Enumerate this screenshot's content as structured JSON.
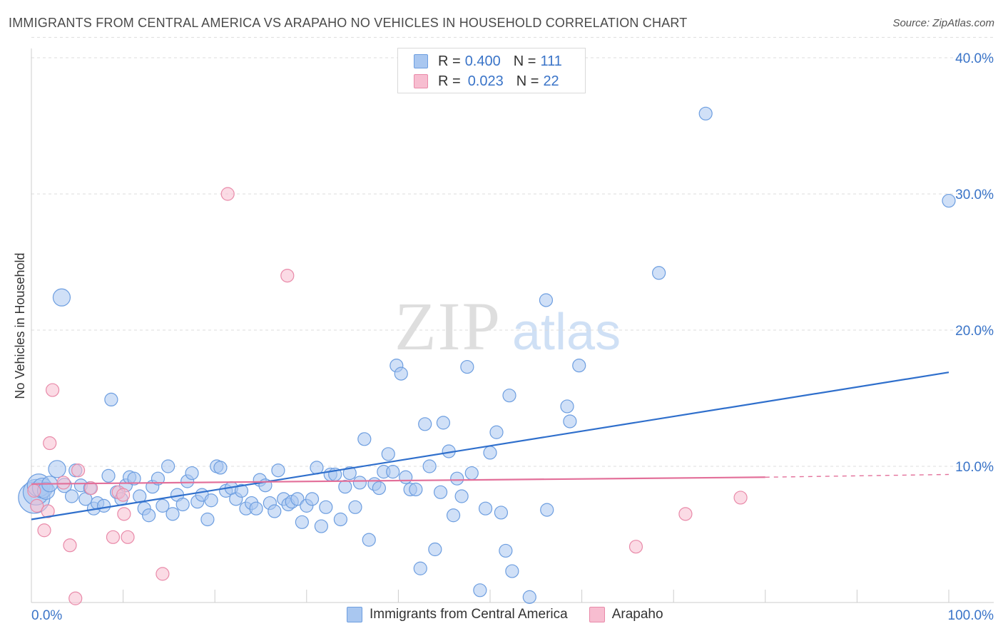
{
  "header": {
    "title": "IMMIGRANTS FROM CENTRAL AMERICA VS ARAPAHO NO VEHICLES IN HOUSEHOLD CORRELATION CHART",
    "source": "Source: ZipAtlas.com"
  },
  "watermark": {
    "zip": "ZIP",
    "atlas": "atlas"
  },
  "legend": {
    "rows": [
      {
        "r_label": "R = ",
        "r_value": "0.400",
        "n_label": "N = ",
        "n_value": "111"
      },
      {
        "r_label": "R = ",
        "r_value": "0.023",
        "n_label": "N = ",
        "n_value": "22"
      }
    ]
  },
  "colors": {
    "blue_fill": "#a9c7f0",
    "blue_stroke": "#6d9ee0",
    "blue_line": "#2f6fcc",
    "pink_fill": "#f7bdd0",
    "pink_stroke": "#e98aa9",
    "pink_line": "#e3709a",
    "grid": "#dddddd",
    "tick_label": "#3a74c8"
  },
  "chart_data": {
    "type": "scatter",
    "title": "IMMIGRANTS FROM CENTRAL AMERICA VS ARAPAHO NO VEHICLES IN HOUSEHOLD CORRELATION CHART",
    "xlabel": "",
    "ylabel": "No Vehicles in Household",
    "xlim": [
      0,
      100
    ],
    "ylim": [
      0,
      42
    ],
    "x_tick_labels": [
      "0.0%",
      "100.0%"
    ],
    "y_ticks": [
      10,
      20,
      30,
      40
    ],
    "y_tick_labels": [
      "10.0%",
      "20.0%",
      "30.0%",
      "40.0%"
    ],
    "grid": true,
    "legend_position": "top-center",
    "series": [
      {
        "name": "Immigrants from Central America",
        "color": "#a9c7f0",
        "regression": {
          "x": [
            0,
            100
          ],
          "y": [
            6.1,
            16.9
          ],
          "r": 0.4,
          "n": 111
        },
        "points": [
          {
            "x": 0.3,
            "y": 7.7,
            "s": 22
          },
          {
            "x": 0.5,
            "y": 8.1,
            "s": 18
          },
          {
            "x": 0.8,
            "y": 8.6,
            "s": 16
          },
          {
            "x": 1.2,
            "y": 8.4,
            "s": 14
          },
          {
            "x": 1.6,
            "y": 8.2,
            "s": 12
          },
          {
            "x": 2.0,
            "y": 8.7,
            "s": 11
          },
          {
            "x": 2.8,
            "y": 9.8,
            "s": 12
          },
          {
            "x": 3.3,
            "y": 22.4,
            "s": 12
          },
          {
            "x": 3.6,
            "y": 8.6,
            "s": 10
          },
          {
            "x": 4.4,
            "y": 7.8,
            "s": 9
          },
          {
            "x": 4.8,
            "y": 9.7,
            "s": 9
          },
          {
            "x": 5.4,
            "y": 8.6,
            "s": 9
          },
          {
            "x": 5.9,
            "y": 7.6,
            "s": 9
          },
          {
            "x": 6.4,
            "y": 8.4,
            "s": 9
          },
          {
            "x": 6.8,
            "y": 6.9,
            "s": 9
          },
          {
            "x": 7.2,
            "y": 7.3,
            "s": 9
          },
          {
            "x": 7.9,
            "y": 7.1,
            "s": 9
          },
          {
            "x": 8.4,
            "y": 9.3,
            "s": 9
          },
          {
            "x": 8.7,
            "y": 14.9,
            "s": 9
          },
          {
            "x": 9.3,
            "y": 8.1,
            "s": 9
          },
          {
            "x": 9.8,
            "y": 7.6,
            "s": 9
          },
          {
            "x": 10.3,
            "y": 8.6,
            "s": 9
          },
          {
            "x": 10.7,
            "y": 9.2,
            "s": 9
          },
          {
            "x": 11.2,
            "y": 9.1,
            "s": 9
          },
          {
            "x": 11.8,
            "y": 7.8,
            "s": 9
          },
          {
            "x": 12.3,
            "y": 6.9,
            "s": 9
          },
          {
            "x": 12.8,
            "y": 6.4,
            "s": 9
          },
          {
            "x": 13.2,
            "y": 8.5,
            "s": 9
          },
          {
            "x": 13.8,
            "y": 9.1,
            "s": 9
          },
          {
            "x": 14.3,
            "y": 7.1,
            "s": 9
          },
          {
            "x": 14.9,
            "y": 10.0,
            "s": 9
          },
          {
            "x": 15.4,
            "y": 6.5,
            "s": 9
          },
          {
            "x": 15.9,
            "y": 7.9,
            "s": 9
          },
          {
            "x": 16.5,
            "y": 7.2,
            "s": 9
          },
          {
            "x": 17.0,
            "y": 8.9,
            "s": 9
          },
          {
            "x": 17.5,
            "y": 9.5,
            "s": 9
          },
          {
            "x": 18.1,
            "y": 7.4,
            "s": 9
          },
          {
            "x": 18.6,
            "y": 7.9,
            "s": 9
          },
          {
            "x": 19.2,
            "y": 6.1,
            "s": 9
          },
          {
            "x": 19.6,
            "y": 7.5,
            "s": 9
          },
          {
            "x": 20.2,
            "y": 10.0,
            "s": 9
          },
          {
            "x": 20.6,
            "y": 9.9,
            "s": 9
          },
          {
            "x": 21.2,
            "y": 8.2,
            "s": 9
          },
          {
            "x": 21.8,
            "y": 8.4,
            "s": 9
          },
          {
            "x": 22.3,
            "y": 7.6,
            "s": 9
          },
          {
            "x": 22.9,
            "y": 8.2,
            "s": 9
          },
          {
            "x": 23.4,
            "y": 6.9,
            "s": 9
          },
          {
            "x": 24.0,
            "y": 7.3,
            "s": 9
          },
          {
            "x": 24.5,
            "y": 6.9,
            "s": 9
          },
          {
            "x": 24.9,
            "y": 9.0,
            "s": 9
          },
          {
            "x": 25.5,
            "y": 8.6,
            "s": 9
          },
          {
            "x": 26.0,
            "y": 7.3,
            "s": 9
          },
          {
            "x": 26.5,
            "y": 6.7,
            "s": 9
          },
          {
            "x": 26.9,
            "y": 9.7,
            "s": 9
          },
          {
            "x": 27.5,
            "y": 7.6,
            "s": 9
          },
          {
            "x": 28.0,
            "y": 7.2,
            "s": 9
          },
          {
            "x": 28.4,
            "y": 7.4,
            "s": 9
          },
          {
            "x": 29.0,
            "y": 7.6,
            "s": 9
          },
          {
            "x": 29.5,
            "y": 5.9,
            "s": 9
          },
          {
            "x": 30.0,
            "y": 7.1,
            "s": 9
          },
          {
            "x": 30.6,
            "y": 7.6,
            "s": 9
          },
          {
            "x": 31.1,
            "y": 9.9,
            "s": 9
          },
          {
            "x": 31.6,
            "y": 5.6,
            "s": 9
          },
          {
            "x": 32.1,
            "y": 7.0,
            "s": 9
          },
          {
            "x": 32.6,
            "y": 9.4,
            "s": 9
          },
          {
            "x": 33.1,
            "y": 9.4,
            "s": 9
          },
          {
            "x": 33.7,
            "y": 6.1,
            "s": 9
          },
          {
            "x": 34.2,
            "y": 8.5,
            "s": 9
          },
          {
            "x": 34.7,
            "y": 9.5,
            "s": 9
          },
          {
            "x": 35.3,
            "y": 7.0,
            "s": 9
          },
          {
            "x": 35.8,
            "y": 8.8,
            "s": 9
          },
          {
            "x": 36.3,
            "y": 12.0,
            "s": 9
          },
          {
            "x": 36.8,
            "y": 4.6,
            "s": 9
          },
          {
            "x": 37.4,
            "y": 8.7,
            "s": 9
          },
          {
            "x": 37.9,
            "y": 8.4,
            "s": 9
          },
          {
            "x": 38.4,
            "y": 9.6,
            "s": 9
          },
          {
            "x": 38.9,
            "y": 10.9,
            "s": 9
          },
          {
            "x": 39.4,
            "y": 9.6,
            "s": 9
          },
          {
            "x": 39.8,
            "y": 17.4,
            "s": 9
          },
          {
            "x": 40.3,
            "y": 16.8,
            "s": 9
          },
          {
            "x": 40.8,
            "y": 9.2,
            "s": 9
          },
          {
            "x": 41.3,
            "y": 8.3,
            "s": 9
          },
          {
            "x": 41.9,
            "y": 8.3,
            "s": 9
          },
          {
            "x": 42.4,
            "y": 2.5,
            "s": 9
          },
          {
            "x": 42.9,
            "y": 13.1,
            "s": 9
          },
          {
            "x": 43.4,
            "y": 10.0,
            "s": 9
          },
          {
            "x": 44.0,
            "y": 3.9,
            "s": 9
          },
          {
            "x": 44.6,
            "y": 8.1,
            "s": 9
          },
          {
            "x": 44.9,
            "y": 13.2,
            "s": 9
          },
          {
            "x": 45.5,
            "y": 11.1,
            "s": 9
          },
          {
            "x": 46.0,
            "y": 6.4,
            "s": 9
          },
          {
            "x": 46.4,
            "y": 9.1,
            "s": 9
          },
          {
            "x": 46.9,
            "y": 7.8,
            "s": 9
          },
          {
            "x": 47.5,
            "y": 17.3,
            "s": 9
          },
          {
            "x": 48.0,
            "y": 9.5,
            "s": 9
          },
          {
            "x": 48.9,
            "y": 0.9,
            "s": 9
          },
          {
            "x": 49.5,
            "y": 6.9,
            "s": 9
          },
          {
            "x": 50.0,
            "y": 11.0,
            "s": 9
          },
          {
            "x": 50.7,
            "y": 12.5,
            "s": 9
          },
          {
            "x": 51.2,
            "y": 6.6,
            "s": 9
          },
          {
            "x": 51.7,
            "y": 3.8,
            "s": 9
          },
          {
            "x": 52.1,
            "y": 15.2,
            "s": 9
          },
          {
            "x": 52.4,
            "y": 2.3,
            "s": 9
          },
          {
            "x": 54.3,
            "y": 0.4,
            "s": 9
          },
          {
            "x": 56.1,
            "y": 22.2,
            "s": 9
          },
          {
            "x": 56.2,
            "y": 6.8,
            "s": 9
          },
          {
            "x": 58.4,
            "y": 14.4,
            "s": 9
          },
          {
            "x": 58.7,
            "y": 13.3,
            "s": 9
          },
          {
            "x": 59.7,
            "y": 17.4,
            "s": 9
          },
          {
            "x": 68.4,
            "y": 24.2,
            "s": 9
          },
          {
            "x": 73.5,
            "y": 35.9,
            "s": 9
          },
          {
            "x": 100.0,
            "y": 29.5,
            "s": 9
          }
        ]
      },
      {
        "name": "Arapaho",
        "color": "#f7bdd0",
        "regression": {
          "x": [
            0,
            80
          ],
          "y": [
            8.7,
            9.2
          ],
          "r": 0.023,
          "n": 22
        },
        "regression_dashed": {
          "x": [
            80,
            100
          ],
          "y": [
            9.2,
            9.4
          ]
        },
        "points": [
          {
            "x": 0.3,
            "y": 8.2,
            "s": 9
          },
          {
            "x": 0.6,
            "y": 7.1,
            "s": 9
          },
          {
            "x": 1.4,
            "y": 5.3,
            "s": 9
          },
          {
            "x": 1.8,
            "y": 6.7,
            "s": 9
          },
          {
            "x": 2.0,
            "y": 11.7,
            "s": 9
          },
          {
            "x": 2.3,
            "y": 15.6,
            "s": 9
          },
          {
            "x": 3.5,
            "y": 8.8,
            "s": 9
          },
          {
            "x": 4.2,
            "y": 4.2,
            "s": 9
          },
          {
            "x": 4.8,
            "y": 0.3,
            "s": 9
          },
          {
            "x": 5.1,
            "y": 9.7,
            "s": 9
          },
          {
            "x": 6.5,
            "y": 8.4,
            "s": 9
          },
          {
            "x": 8.9,
            "y": 4.8,
            "s": 9
          },
          {
            "x": 9.5,
            "y": 8.1,
            "s": 9
          },
          {
            "x": 10.0,
            "y": 7.9,
            "s": 9
          },
          {
            "x": 10.1,
            "y": 6.5,
            "s": 9
          },
          {
            "x": 10.5,
            "y": 4.8,
            "s": 9
          },
          {
            "x": 14.3,
            "y": 2.1,
            "s": 9
          },
          {
            "x": 21.4,
            "y": 30.0,
            "s": 9
          },
          {
            "x": 27.9,
            "y": 24.0,
            "s": 9
          },
          {
            "x": 65.9,
            "y": 4.1,
            "s": 9
          },
          {
            "x": 71.3,
            "y": 6.5,
            "s": 9
          },
          {
            "x": 77.3,
            "y": 7.7,
            "s": 9
          }
        ]
      }
    ]
  }
}
